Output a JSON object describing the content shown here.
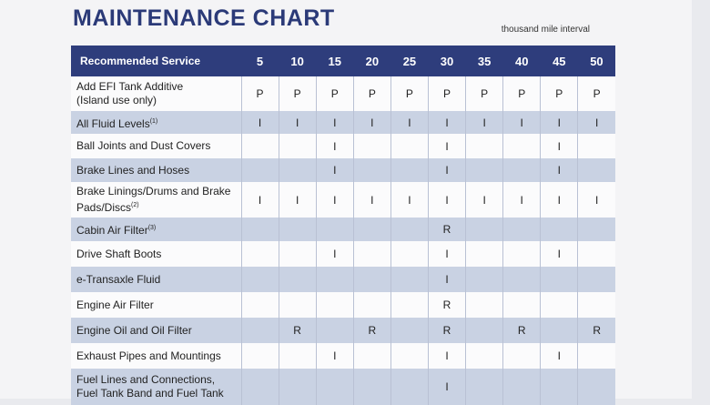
{
  "title": "MAINTENANCE CHART",
  "subtitle": "thousand mile interval",
  "table": {
    "header": [
      "Recommended Service",
      "5",
      "10",
      "15",
      "20",
      "25",
      "30",
      "35",
      "40",
      "45",
      "50"
    ],
    "rows": [
      {
        "service": [
          "Add EFI Tank Additive",
          "(Island use only)"
        ],
        "marks": [
          "P",
          "P",
          "P",
          "P",
          "P",
          "P",
          "P",
          "P",
          "P",
          "P"
        ]
      },
      {
        "service": [
          "All Fluid Levels"
        ],
        "note": "(1)",
        "marks": [
          "I",
          "I",
          "I",
          "I",
          "I",
          "I",
          "I",
          "I",
          "I",
          "I"
        ]
      },
      {
        "service": [
          "Ball Joints and Dust Covers"
        ],
        "marks": [
          null,
          null,
          "I",
          null,
          null,
          "I",
          null,
          null,
          "I",
          null
        ]
      },
      {
        "service": [
          "Brake Lines and Hoses"
        ],
        "marks": [
          null,
          null,
          "I",
          null,
          null,
          "I",
          null,
          null,
          "I",
          null
        ]
      },
      {
        "service": [
          "Brake Linings/Drums and Brake",
          "Pads/Discs"
        ],
        "note": "(2)",
        "marks": [
          "I",
          "I",
          "I",
          "I",
          "I",
          "I",
          "I",
          "I",
          "I",
          "I"
        ]
      },
      {
        "service": [
          "Cabin Air Filter"
        ],
        "note": "(3)",
        "marks": [
          null,
          null,
          null,
          null,
          null,
          "R",
          null,
          null,
          null,
          null
        ]
      },
      {
        "service": [
          "Drive Shaft Boots"
        ],
        "marks": [
          null,
          null,
          "I",
          null,
          null,
          "I",
          null,
          null,
          "I",
          null
        ]
      },
      {
        "service": [
          "e-Transaxle Fluid"
        ],
        "marks": [
          null,
          null,
          null,
          null,
          null,
          "I",
          null,
          null,
          null,
          null
        ]
      },
      {
        "service": [
          "Engine Air Filter"
        ],
        "marks": [
          null,
          null,
          null,
          null,
          null,
          "R",
          null,
          null,
          null,
          null
        ]
      },
      {
        "service": [
          "Engine Oil and Oil Filter"
        ],
        "marks": [
          null,
          "R",
          null,
          "R",
          null,
          "R",
          null,
          "R",
          null,
          "R"
        ]
      },
      {
        "service": [
          "Exhaust Pipes and Mountings"
        ],
        "marks": [
          null,
          null,
          "I",
          null,
          null,
          "I",
          null,
          null,
          "I",
          null
        ]
      },
      {
        "service": [
          "Fuel Lines and Connections,",
          "Fuel Tank Band and Fuel Tank"
        ],
        "marks": [
          null,
          null,
          null,
          null,
          null,
          "I",
          null,
          null,
          null,
          null
        ]
      }
    ]
  }
}
